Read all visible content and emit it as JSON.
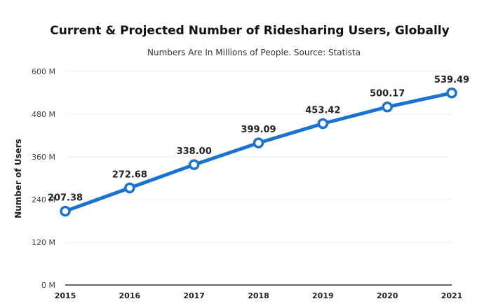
{
  "chart_data": {
    "type": "line",
    "title": "Current & Projected Number of Ridesharing Users, Globally",
    "subtitle": "Numbers Are In Millions of People. Source: Statista",
    "xlabel": "",
    "ylabel": "Number of Users",
    "categories": [
      "2015",
      "2016",
      "2017",
      "2018",
      "2019",
      "2020",
      "2021"
    ],
    "values": [
      207.38,
      272.68,
      338.0,
      399.09,
      453.42,
      500.17,
      539.49
    ],
    "data_labels": [
      "207.38",
      "272.68",
      "338.00",
      "399.09",
      "453.42",
      "500.17",
      "539.49"
    ],
    "ylim": [
      0,
      600
    ],
    "yticks": [
      0,
      120,
      240,
      360,
      480,
      600
    ],
    "ytick_labels": [
      "0 M",
      "120 M",
      "240 M",
      "360 M",
      "480 M",
      "600 M"
    ],
    "grid": true,
    "colors": {
      "line": "#1a73d0",
      "marker_fill": "#ffffff"
    }
  }
}
